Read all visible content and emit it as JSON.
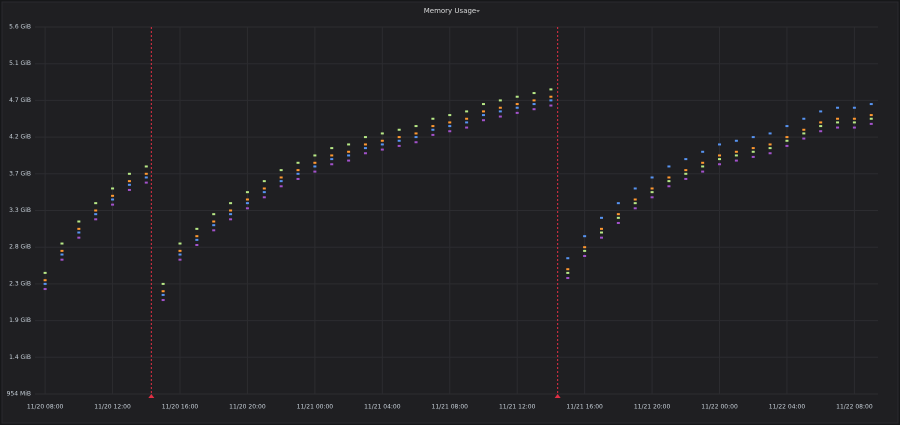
{
  "chart_data": {
    "type": "scatter",
    "title": "Memory Usage",
    "x": [
      8,
      9,
      10,
      11,
      12,
      13,
      14,
      15,
      16,
      17,
      18,
      19,
      20,
      21,
      22,
      23,
      24,
      25,
      26,
      27,
      28,
      29,
      30,
      31,
      32,
      33,
      34,
      35,
      36,
      37,
      38,
      39,
      40,
      41,
      42,
      43,
      44,
      45,
      46,
      47,
      48,
      49,
      50,
      51,
      52,
      53,
      54,
      55,
      56,
      57
    ],
    "series": [
      {
        "color": "#b8e986",
        "values": [
          2650,
          3050,
          3350,
          3600,
          3800,
          4000,
          4100,
          2500,
          3050,
          3250,
          3450,
          3600,
          3750,
          3900,
          4050,
          4150,
          4250,
          4350,
          4400,
          4500,
          4550,
          4600,
          4650,
          4750,
          4800,
          4850,
          4950,
          5000,
          5050,
          5100,
          5150,
          2650,
          2950,
          3200,
          3400,
          3600,
          3750,
          3900,
          4000,
          4100,
          4200,
          4250,
          4300,
          4350,
          4450,
          4550,
          4650,
          4700,
          4700,
          4750
        ]
      },
      {
        "color": "#ff9830",
        "values": [
          2550,
          2950,
          3250,
          3500,
          3700,
          3900,
          4000,
          2400,
          2950,
          3150,
          3350,
          3500,
          3650,
          3800,
          3950,
          4050,
          4150,
          4250,
          4300,
          4400,
          4450,
          4500,
          4550,
          4650,
          4700,
          4750,
          4850,
          4900,
          4950,
          5000,
          5050,
          2700,
          3000,
          3250,
          3450,
          3650,
          3800,
          3950,
          4050,
          4150,
          4250,
          4300,
          4350,
          4400,
          4500,
          4600,
          4700,
          4750,
          4750,
          4800
        ]
      },
      {
        "color": "#a352cc",
        "values": [
          2430,
          2830,
          3130,
          3380,
          3580,
          3780,
          3880,
          2280,
          2830,
          3030,
          3230,
          3380,
          3530,
          3680,
          3830,
          3930,
          4030,
          4130,
          4180,
          4280,
          4330,
          4380,
          4430,
          4530,
          4580,
          4630,
          4730,
          4780,
          4830,
          4880,
          4930,
          2580,
          2880,
          3130,
          3330,
          3530,
          3680,
          3830,
          3930,
          4030,
          4130,
          4180,
          4230,
          4280,
          4380,
          4480,
          4580,
          4630,
          4630,
          4680
        ]
      },
      {
        "color": "#5794f2",
        "values": [
          2500,
          2900,
          3200,
          3450,
          3650,
          3850,
          3950,
          2350,
          2900,
          3100,
          3300,
          3450,
          3600,
          3750,
          3900,
          4000,
          4100,
          4200,
          4250,
          4350,
          4400,
          4450,
          4500,
          4600,
          4650,
          4700,
          4800,
          4850,
          4900,
          4950,
          5000,
          2850,
          3150,
          3400,
          3600,
          3800,
          3950,
          4100,
          4200,
          4300,
          4400,
          4450,
          4500,
          4550,
          4650,
          4750,
          4850,
          4900,
          4900,
          4950
        ]
      }
    ],
    "xlim": [
      7.4,
      57.4
    ],
    "xticks": [
      {
        "value": 8,
        "label": "11/20 08:00"
      },
      {
        "value": 12,
        "label": "11/20 12:00"
      },
      {
        "value": 16,
        "label": "11/20 16:00"
      },
      {
        "value": 20,
        "label": "11/20 20:00"
      },
      {
        "value": 24,
        "label": "11/21 00:00"
      },
      {
        "value": 28,
        "label": "11/21 04:00"
      },
      {
        "value": 32,
        "label": "11/21 08:00"
      },
      {
        "value": 36,
        "label": "11/21 12:00"
      },
      {
        "value": 40,
        "label": "11/21 16:00"
      },
      {
        "value": 44,
        "label": "11/21 20:00"
      },
      {
        "value": 48,
        "label": "11/22 00:00"
      },
      {
        "value": 52,
        "label": "11/22 04:00"
      },
      {
        "value": 56,
        "label": "11/22 08:00"
      }
    ],
    "ylim": [
      1000,
      6000
    ],
    "yticks": [
      {
        "value": 1000,
        "label": "954 MiB"
      },
      {
        "value": 1500,
        "label": "1.4 GiB"
      },
      {
        "value": 2000,
        "label": "1.9 GiB"
      },
      {
        "value": 2500,
        "label": "2.3 GiB"
      },
      {
        "value": 3000,
        "label": "2.8 GiB"
      },
      {
        "value": 3500,
        "label": "3.3 GiB"
      },
      {
        "value": 4000,
        "label": "3.7 GiB"
      },
      {
        "value": 4500,
        "label": "4.2 GiB"
      },
      {
        "value": 5000,
        "label": "4.7 GiB"
      },
      {
        "value": 5500,
        "label": "5.1 GiB"
      },
      {
        "value": 6000,
        "label": "5.6 GiB"
      }
    ],
    "grid": true,
    "annotations": [
      {
        "x": 14.3,
        "color": "#e02f44"
      },
      {
        "x": 38.4,
        "color": "#e02f44"
      }
    ]
  }
}
